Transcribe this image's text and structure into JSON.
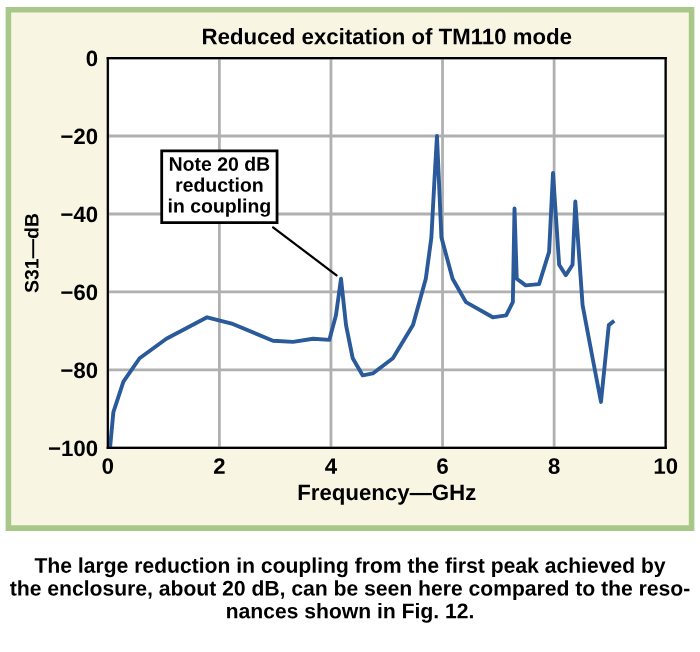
{
  "chart_data": {
    "type": "line",
    "title": "Reduced excitation of TM110 mode",
    "xlabel": "Frequency—GHz",
    "ylabel": "S31—dB",
    "x": [
      0.04,
      0.1,
      0.28,
      0.57,
      1.05,
      1.78,
      2.24,
      2.96,
      3.32,
      3.68,
      3.97,
      4.09,
      4.18,
      4.27,
      4.39,
      4.57,
      4.75,
      5.11,
      5.47,
      5.7,
      5.8,
      5.86,
      5.9,
      5.98,
      6.18,
      6.42,
      6.9,
      7.14,
      7.26,
      7.29,
      7.33,
      7.49,
      7.73,
      7.91,
      7.98,
      8.09,
      8.21,
      8.33,
      8.38,
      8.51,
      8.69,
      8.84,
      8.98,
      9.05
    ],
    "series": [
      {
        "color": "#2a5a9a",
        "values": [
          -100,
          -90.8,
          -83,
          -77,
          -72,
          -66.5,
          -68.2,
          -72.5,
          -72.8,
          -72,
          -72.3,
          -66,
          -56.6,
          -68.5,
          -77,
          -81.4,
          -80.9,
          -77,
          -68.5,
          -56.6,
          -46,
          -30,
          -20,
          -46,
          -56.6,
          -62.6,
          -66.5,
          -66,
          -62.6,
          -38.6,
          -56.6,
          -58.3,
          -58,
          -49.7,
          -29.5,
          -53,
          -55.7,
          -53,
          -36.8,
          -63.4,
          -77,
          -88.2,
          -68.5,
          -67.7
        ]
      }
    ],
    "xlim": [
      0,
      10
    ],
    "xticks": [
      0,
      2,
      4,
      6,
      8,
      10
    ],
    "ylim": [
      -100,
      0
    ],
    "yticks": [
      {
        "value": -100,
        "label": "−100"
      },
      {
        "value": -80,
        "label": "−80"
      },
      {
        "value": -60,
        "label": "−60"
      },
      {
        "value": -40,
        "label": "−40"
      },
      {
        "value": -20,
        "label": "−20"
      },
      0
    ],
    "grid": true,
    "line_style": "solid",
    "annotations": [
      {
        "text": "Note 20 dB\nreduction\nin coupling",
        "x": 4.18,
        "y": -56.6
      },
      "The large reduction in coupling from the first peak achieved by\nthe enclosure, about 20 dB, can be seen here compared to the reso-\nnances shown in Fig. 12."
    ]
  }
}
